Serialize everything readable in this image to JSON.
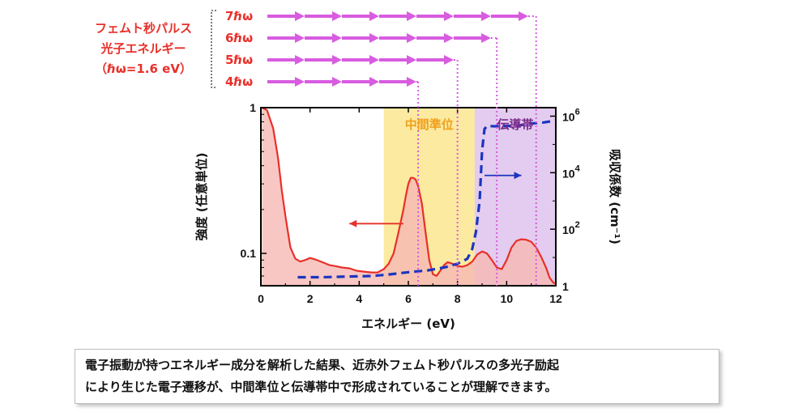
{
  "chart_data": {
    "type": "line",
    "xlabel": "エネルギー (eV)",
    "ylabel_left": "強度 (任意単位)",
    "ylabel_right": "吸収係数 (cm⁻¹)",
    "xlim": [
      0,
      12
    ],
    "ylim_left_log": [
      0.06,
      1
    ],
    "ylim_right_log": [
      1,
      2000000
    ],
    "x_ticks": [
      0,
      2,
      4,
      6,
      8,
      10,
      12
    ],
    "x_tick_labels": [
      "0",
      "2",
      "4",
      "6",
      "8",
      "10",
      "12"
    ],
    "y_left_ticks": [
      {
        "value": 1,
        "label": "1"
      },
      {
        "value": 0.1,
        "label": "0.1"
      }
    ],
    "y_right_ticks": [
      {
        "value": 1,
        "base": "1",
        "exp": ""
      },
      {
        "value": 100,
        "base": "10",
        "exp": "2"
      },
      {
        "value": 10000,
        "base": "10",
        "exp": "4"
      },
      {
        "value": 1000000,
        "base": "10",
        "exp": "6"
      }
    ],
    "regions": [
      {
        "label": "中間準位",
        "x_range": [
          5.0,
          8.7
        ],
        "color": "#fbeaa0",
        "label_color": "#f0a01e"
      },
      {
        "label": "伝導帯",
        "x_range": [
          8.7,
          12.0
        ],
        "color": "#e3ccef",
        "label_color": "#7a2a8a"
      }
    ],
    "series": [
      {
        "style": "solid",
        "color": "#e8302a",
        "fill": "#f6b9b4",
        "axis": "left",
        "x": [
          0.05,
          0.25,
          0.5,
          0.7,
          0.85,
          1.0,
          1.2,
          1.4,
          1.6,
          1.8,
          2.0,
          2.2,
          2.5,
          2.8,
          3.0,
          3.3,
          3.6,
          3.9,
          4.2,
          4.5,
          4.75,
          5.0,
          5.2,
          5.4,
          5.6,
          5.8,
          5.9,
          6.0,
          6.1,
          6.2,
          6.3,
          6.4,
          6.55,
          6.7,
          6.85,
          7.0,
          7.15,
          7.3,
          7.45,
          7.6,
          7.8,
          8.0,
          8.2,
          8.4,
          8.6,
          8.8,
          9.0,
          9.2,
          9.4,
          9.6,
          9.8,
          10.0,
          10.2,
          10.4,
          10.6,
          10.8,
          11.0,
          11.2,
          11.4,
          11.6,
          11.75,
          11.9,
          12.0
        ],
        "y": [
          1.0,
          0.96,
          0.72,
          0.45,
          0.27,
          0.18,
          0.11,
          0.092,
          0.088,
          0.09,
          0.093,
          0.091,
          0.087,
          0.083,
          0.082,
          0.08,
          0.079,
          0.076,
          0.075,
          0.074,
          0.074,
          0.078,
          0.085,
          0.1,
          0.14,
          0.2,
          0.25,
          0.3,
          0.33,
          0.33,
          0.32,
          0.29,
          0.22,
          0.14,
          0.09,
          0.072,
          0.07,
          0.076,
          0.083,
          0.087,
          0.085,
          0.082,
          0.081,
          0.083,
          0.088,
          0.098,
          0.103,
          0.1,
          0.09,
          0.08,
          0.078,
          0.09,
          0.11,
          0.122,
          0.125,
          0.124,
          0.12,
          0.11,
          0.095,
          0.08,
          0.068,
          0.063,
          0.062
        ]
      },
      {
        "style": "dashed",
        "color": "#1c35c0",
        "axis": "right",
        "x": [
          1.5,
          2.5,
          3.5,
          4.5,
          5.2,
          6.0,
          6.8,
          7.5,
          8.0,
          8.4,
          8.6,
          8.75,
          8.9,
          9.0,
          9.1,
          9.2,
          9.5,
          10.0,
          10.5,
          11.0,
          11.5,
          12.0
        ],
        "y": [
          2.0,
          2.0,
          2.1,
          2.2,
          2.5,
          3.0,
          3.5,
          4.5,
          6.0,
          9.0,
          20,
          80,
          1000,
          60000,
          350000,
          450000,
          440000,
          450000,
          470000,
          550000,
          600000,
          700000
        ]
      }
    ],
    "arrows": [
      {
        "direction": "left",
        "color": "#e8302a"
      },
      {
        "direction": "right",
        "color": "#1c35c0"
      }
    ],
    "photon_legend": {
      "title_lines": [
        "フェムト秒パルス",
        "光子エネルギー",
        "（ℏω=1.6 eV）"
      ],
      "rows": [
        {
          "label": "7ℏω",
          "count": 7,
          "energy": 11.2
        },
        {
          "label": "6ℏω",
          "count": 6,
          "energy": 9.6
        },
        {
          "label": "5ℏω",
          "count": 5,
          "energy": 8.0
        },
        {
          "label": "4ℏω",
          "count": 4,
          "energy": 6.4
        }
      ],
      "arrow_color": "#d85ce0"
    }
  },
  "caption": {
    "line1": "電子振動が持つエネルギー成分を解析した結果、近赤外フェムト秒パルスの多光子励起",
    "line2": "により生じた電子遷移が、中間準位と伝導帯中で形成されていることが理解できます。"
  }
}
